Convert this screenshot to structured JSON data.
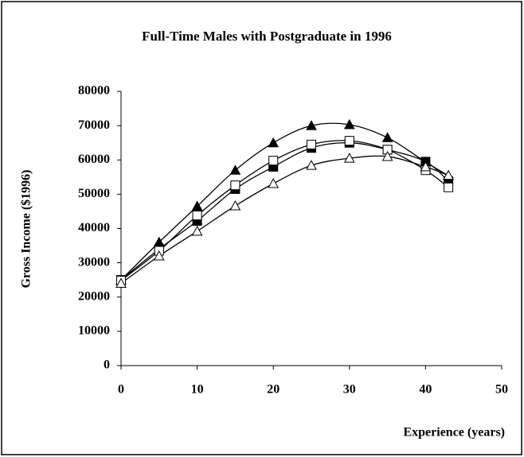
{
  "chart_data": {
    "type": "line",
    "title": "Full-Time Males with Postgraduate in 1996",
    "x_label": "Experience (years)",
    "y_label": "Gross Income ($1996)",
    "x": [
      0,
      5,
      10,
      15,
      20,
      25,
      30,
      35,
      40,
      43
    ],
    "series": [
      {
        "color": "#000000",
        "marker": "triangle",
        "marker_fill": "#000000",
        "values": [
          25000,
          36000,
          46500,
          57000,
          65000,
          70000,
          70300,
          66500,
          59400,
          55400
        ]
      },
      {
        "color": "#000000",
        "marker": "square",
        "marker_fill": "#000000",
        "values": [
          25000,
          34000,
          42200,
          51500,
          58000,
          63500,
          65000,
          63000,
          59500,
          53800
        ]
      },
      {
        "color": "#000000",
        "marker": "square",
        "marker_fill": "#ffffff",
        "values": [
          24800,
          33500,
          43800,
          52600,
          59800,
          64500,
          65600,
          63000,
          57000,
          52000
        ]
      },
      {
        "color": "#000000",
        "marker": "triangle",
        "marker_fill": "#ffffff",
        "values": [
          24000,
          32000,
          39200,
          46600,
          53100,
          58400,
          60500,
          61000,
          58000,
          55500
        ]
      }
    ],
    "xlim": [
      0,
      50
    ],
    "xticks": [
      0,
      10,
      20,
      30,
      40,
      50
    ],
    "ylim": [
      0,
      80000
    ],
    "yticks": [
      0,
      10000,
      20000,
      30000,
      40000,
      50000,
      60000,
      70000,
      80000
    ],
    "grid": false
  }
}
